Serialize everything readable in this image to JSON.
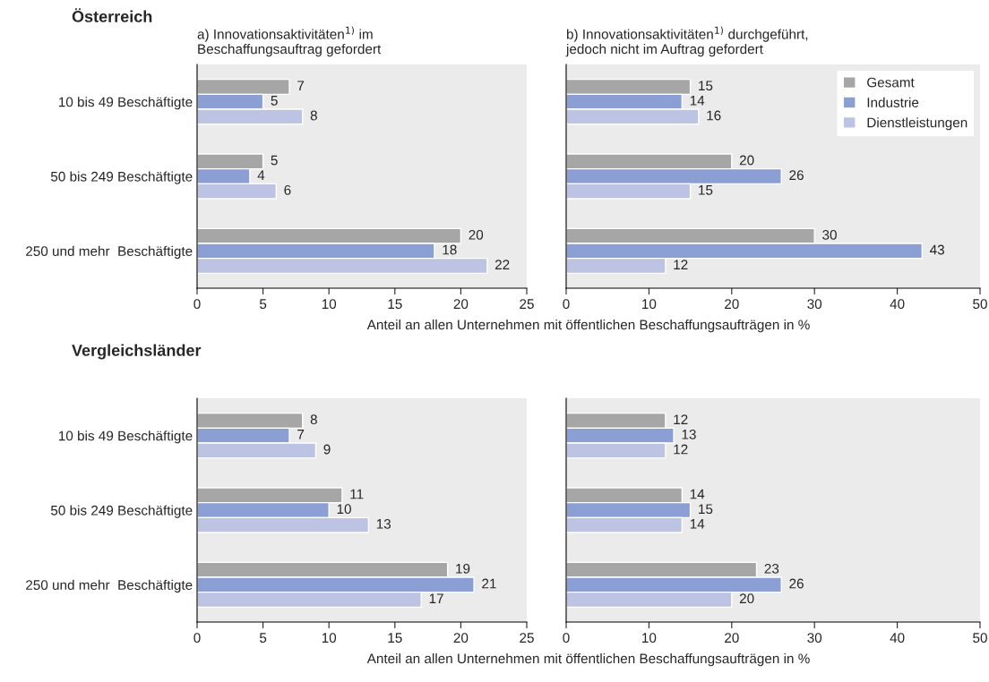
{
  "chart_data": [
    {
      "type": "bar",
      "orientation": "horizontal",
      "title": "Österreich",
      "subtitle": "a) Innovationsaktivitäten$^{1)}$ im\nBeschaffungsauftrag gefordert",
      "xlabel": "Anteil an allen Unternehmen mit öffentlichen Beschaffungsaufträgen in %",
      "categories": [
        "10 bis 49 Beschäftigte",
        "50 bis 249 Beschäftigte",
        "250 und mehr  Beschäftigte"
      ],
      "xlim": [
        0,
        25
      ],
      "xticks": [
        0,
        5,
        10,
        15,
        20,
        25
      ],
      "data_labels": true,
      "series": [
        {
          "color": "#a6a6a6",
          "values": [
            7,
            5,
            20
          ]
        },
        {
          "color": "#8c9fd4",
          "values": [
            5,
            4,
            18
          ]
        },
        {
          "color": "#bcc3e3",
          "values": [
            8,
            6,
            22
          ]
        }
      ]
    },
    {
      "type": "bar",
      "orientation": "horizontal",
      "subtitle": "b) Innovationsaktivitäten$^{1)}$ durchgeführt,\njedoch nicht im Auftrag gefordert",
      "categories": [
        null,
        null,
        null
      ],
      "xlim": [
        0,
        50
      ],
      "xticks": [
        0,
        10,
        20,
        30,
        40,
        50
      ],
      "data_labels": true,
      "legend": "top right",
      "series": [
        {
          "name": "Gesamt",
          "color": "#a6a6a6",
          "values": [
            15,
            20,
            30
          ]
        },
        {
          "name": "Industrie",
          "color": "#8c9fd4",
          "values": [
            14,
            26,
            43
          ]
        },
        {
          "name": "Dienstleistungen",
          "color": "#bcc3e3",
          "values": [
            16,
            15,
            12
          ]
        }
      ]
    },
    {
      "type": "bar",
      "orientation": "horizontal",
      "title": "Vergleichsländer",
      "xlabel": "Anteil an allen Unternehmen mit öffentlichen Beschaffungsaufträgen in %",
      "categories": [
        "10 bis 49 Beschäftigte",
        "50 bis 249 Beschäftigte",
        "250 und mehr  Beschäftigte"
      ],
      "xlim": [
        0,
        25
      ],
      "xticks": [
        0,
        5,
        10,
        15,
        20,
        25
      ],
      "data_labels": true,
      "series": [
        {
          "color": "#a6a6a6",
          "values": [
            8,
            11,
            19
          ]
        },
        {
          "color": "#8c9fd4",
          "values": [
            7,
            10,
            21
          ]
        },
        {
          "color": "#bcc3e3",
          "values": [
            9,
            13,
            17
          ]
        }
      ]
    },
    {
      "type": "bar",
      "orientation": "horizontal",
      "categories": [
        null,
        null,
        null
      ],
      "xlim": [
        0,
        50
      ],
      "xticks": [
        0,
        10,
        20,
        30,
        40,
        50
      ],
      "data_labels": true,
      "series": [
        {
          "color": "#a6a6a6",
          "values": [
            12,
            14,
            23
          ]
        },
        {
          "color": "#8c9fd4",
          "values": [
            13,
            15,
            26
          ]
        },
        {
          "color": "#bcc3e3",
          "values": [
            12,
            14,
            20
          ]
        }
      ]
    }
  ]
}
